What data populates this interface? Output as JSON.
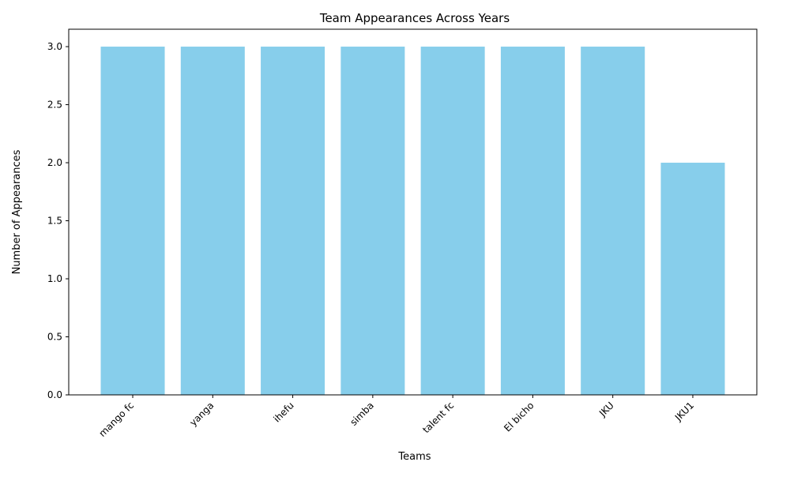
{
  "chart_data": {
    "type": "bar",
    "title": "Team Appearances Across Years",
    "xlabel": "Teams",
    "ylabel": "Number of Appearances",
    "categories": [
      "mango fc",
      "yanga",
      "ihefu",
      "simba",
      "talent fc",
      "El bicho",
      "JKU",
      "JKU1"
    ],
    "values": [
      3,
      3,
      3,
      3,
      3,
      3,
      3,
      2
    ],
    "ylim": [
      0,
      3.15
    ],
    "yticks": [
      0.0,
      0.5,
      1.0,
      1.5,
      2.0,
      2.5,
      3.0
    ],
    "ytick_labels": [
      "0.0",
      "0.5",
      "1.0",
      "1.5",
      "2.0",
      "2.5",
      "3.0"
    ],
    "bar_color": "#87ceeb",
    "grid": false,
    "x_tick_rotation_deg": 45
  }
}
